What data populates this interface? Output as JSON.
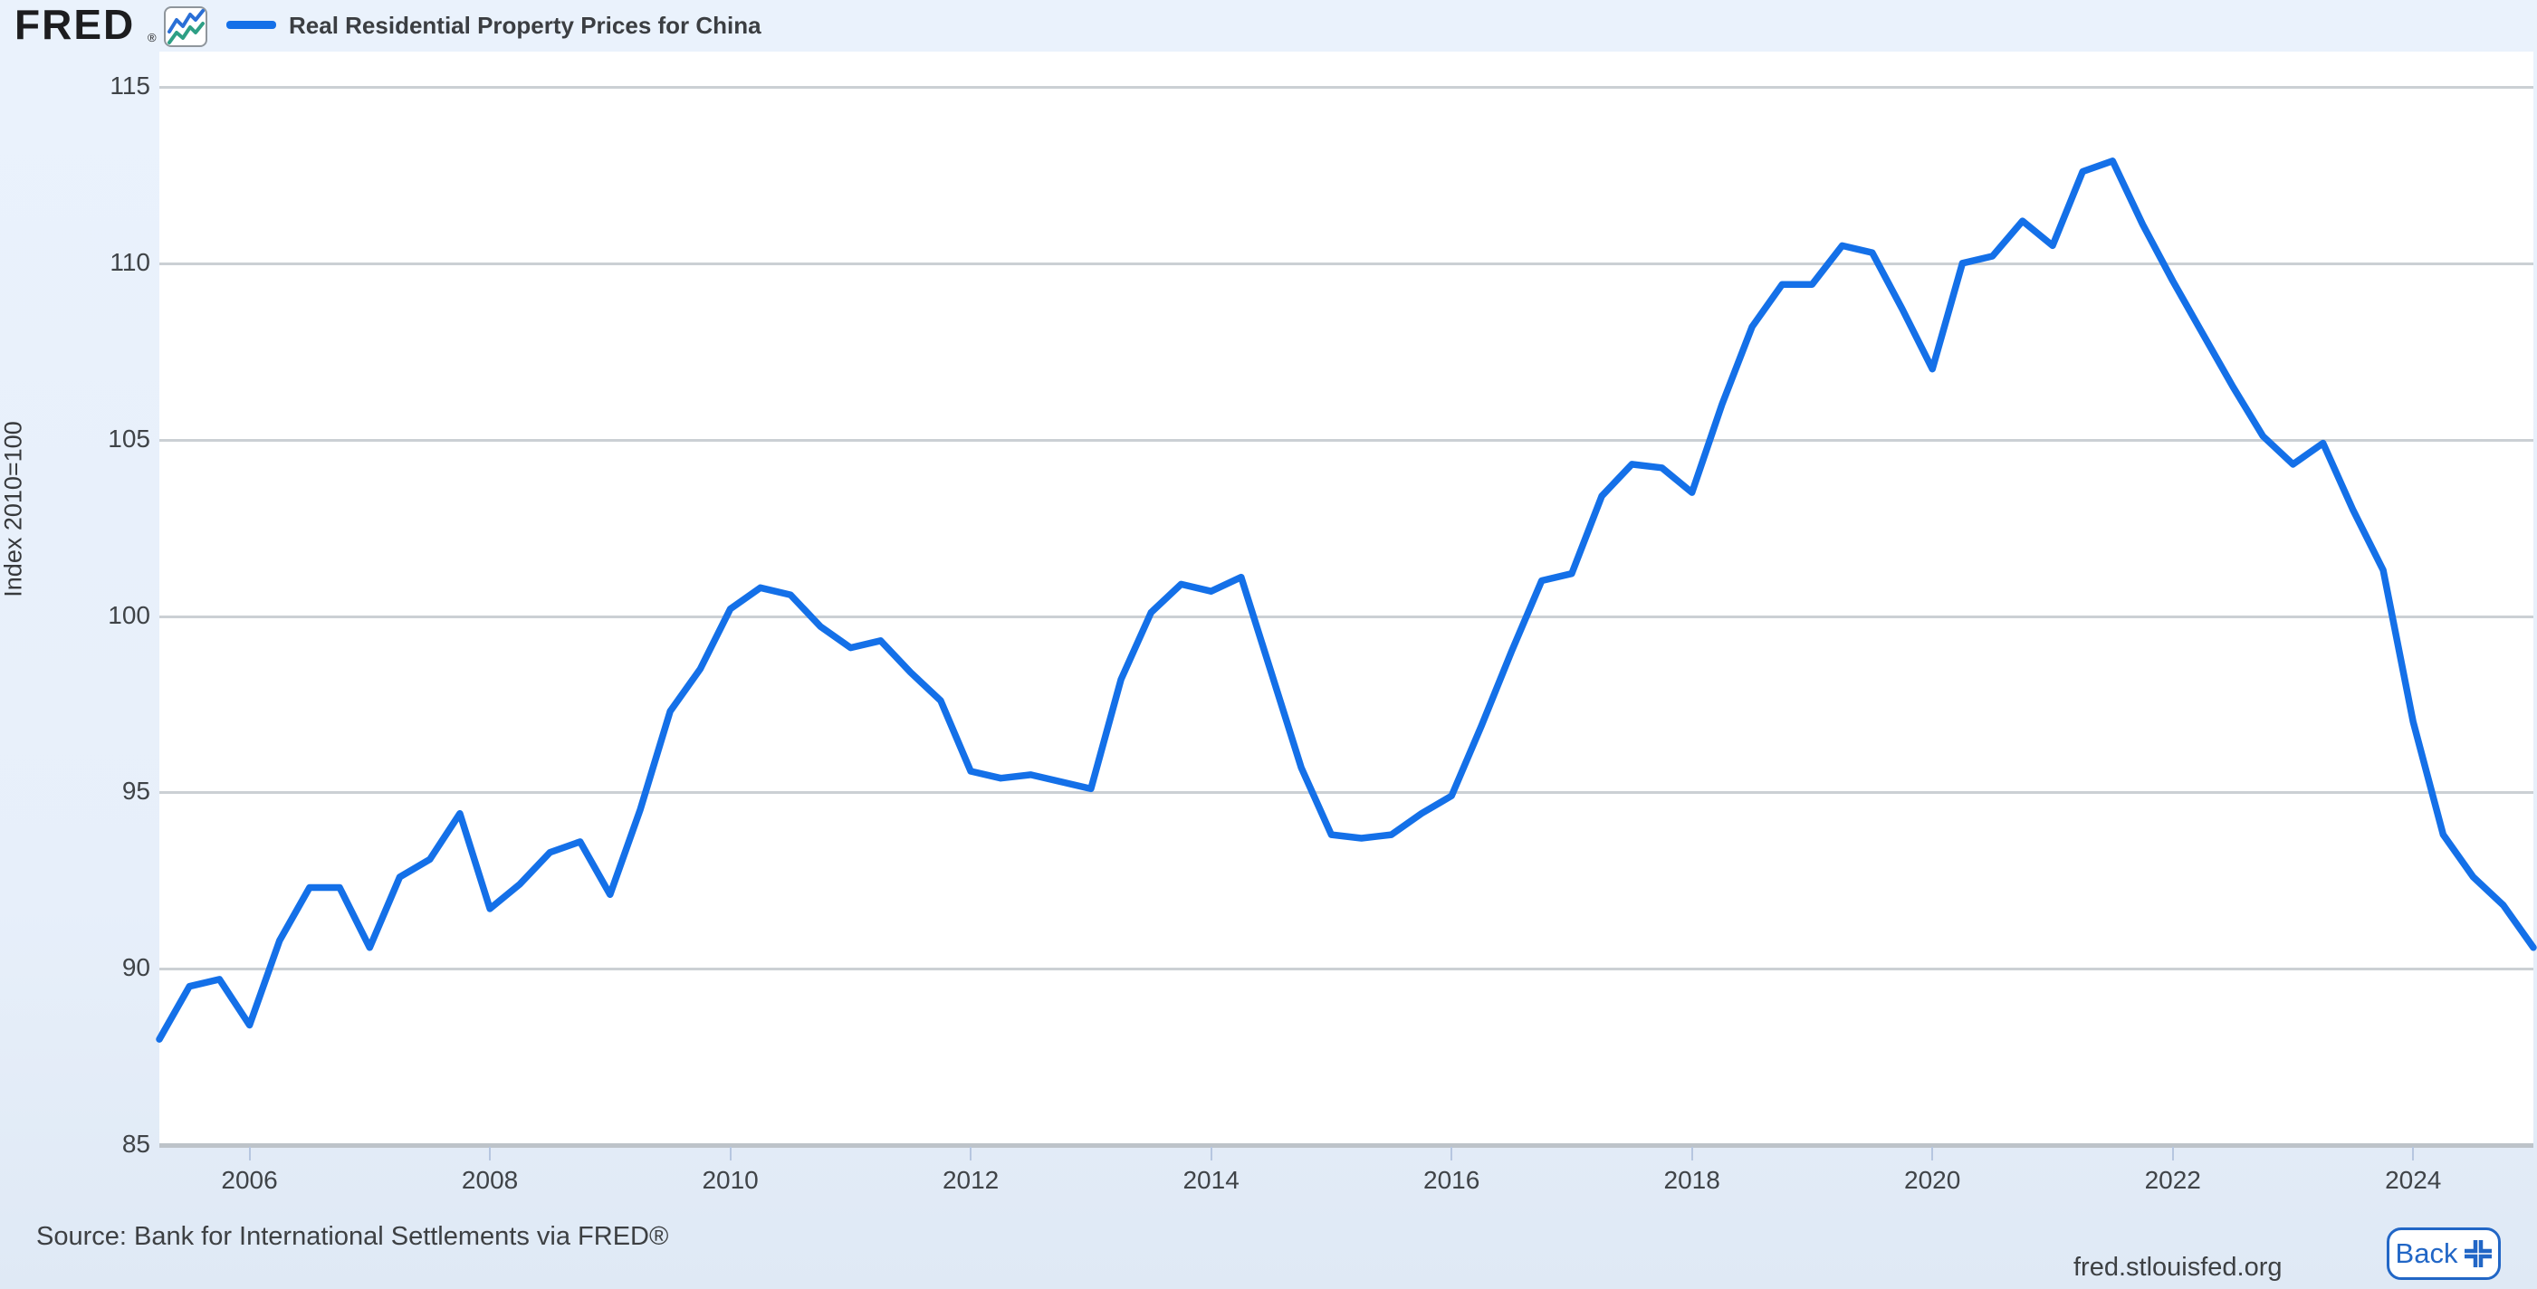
{
  "header": {
    "logo_text": "FRED",
    "logo_registered_mark": "®",
    "legend": {
      "series_label": "Real Residential Property Prices for China",
      "swatch_color": "#1470e8"
    }
  },
  "footer": {
    "source_text": "Source: Bank for International Settlements via FRED®",
    "site_url": "fred.stlouisfed.org",
    "back_button_label": "Back"
  },
  "icons": {
    "fred_logo_chart_icon": "line-chart-icon",
    "back_button_icon": "exit-fullscreen-icon"
  },
  "colors": {
    "page_background": "#e8f0fb",
    "plot_background": "#ffffff",
    "gridline": "#cbd0d4",
    "axis_line": "#bdc3c9",
    "line": "#1470e8",
    "tick_mark": "#b6c6e0",
    "text": "#3f4347",
    "back_button_blue": "#2166c6",
    "logo_icon_blue": "#2a6fd6",
    "logo_icon_teal": "#2e9f85"
  },
  "chart_data": {
    "type": "line",
    "title": "Real Residential Property Prices for China",
    "xlabel": "",
    "ylabel": "Index 2010=100",
    "ylim": [
      85,
      115
    ],
    "yticks": [
      85,
      90,
      95,
      100,
      105,
      110,
      115
    ],
    "xticks": [
      2006,
      2008,
      2010,
      2012,
      2014,
      2016,
      2018,
      2020,
      2022,
      2024
    ],
    "x_start_decimal": 2005.25,
    "x_end_decimal": 2025.0,
    "frequency": "quarterly",
    "grid": "horizontal-only",
    "legend_position": "top-left",
    "series": [
      {
        "name": "Real Residential Property Prices for China",
        "color": "#1470e8",
        "points": [
          [
            "2005 Q2",
            88.0
          ],
          [
            "2005 Q3",
            89.5
          ],
          [
            "2005 Q4",
            89.7
          ],
          [
            "2006 Q1",
            88.4
          ],
          [
            "2006 Q2",
            90.8
          ],
          [
            "2006 Q3",
            92.3
          ],
          [
            "2006 Q4",
            92.3
          ],
          [
            "2007 Q1",
            90.6
          ],
          [
            "2007 Q2",
            92.6
          ],
          [
            "2007 Q3",
            93.1
          ],
          [
            "2007 Q4",
            94.4
          ],
          [
            "2008 Q1",
            91.7
          ],
          [
            "2008 Q2",
            92.4
          ],
          [
            "2008 Q3",
            93.3
          ],
          [
            "2008 Q4",
            93.6
          ],
          [
            "2009 Q1",
            92.1
          ],
          [
            "2009 Q2",
            94.5
          ],
          [
            "2009 Q3",
            97.3
          ],
          [
            "2009 Q4",
            98.5
          ],
          [
            "2010 Q1",
            100.2
          ],
          [
            "2010 Q2",
            100.8
          ],
          [
            "2010 Q3",
            100.6
          ],
          [
            "2010 Q4",
            99.7
          ],
          [
            "2011 Q1",
            99.1
          ],
          [
            "2011 Q2",
            99.3
          ],
          [
            "2011 Q3",
            98.4
          ],
          [
            "2011 Q4",
            97.6
          ],
          [
            "2012 Q1",
            95.6
          ],
          [
            "2012 Q2",
            95.4
          ],
          [
            "2012 Q3",
            95.5
          ],
          [
            "2012 Q4",
            95.3
          ],
          [
            "2013 Q1",
            95.1
          ],
          [
            "2013 Q2",
            98.2
          ],
          [
            "2013 Q3",
            100.1
          ],
          [
            "2013 Q4",
            100.9
          ],
          [
            "2014 Q1",
            100.7
          ],
          [
            "2014 Q2",
            101.1
          ],
          [
            "2014 Q3",
            98.4
          ],
          [
            "2014 Q4",
            95.7
          ],
          [
            "2015 Q1",
            93.8
          ],
          [
            "2015 Q2",
            93.7
          ],
          [
            "2015 Q3",
            93.8
          ],
          [
            "2015 Q4",
            94.4
          ],
          [
            "2016 Q1",
            94.9
          ],
          [
            "2016 Q2",
            96.9
          ],
          [
            "2016 Q3",
            99.0
          ],
          [
            "2016 Q4",
            101.0
          ],
          [
            "2017 Q1",
            101.2
          ],
          [
            "2017 Q2",
            103.4
          ],
          [
            "2017 Q3",
            104.3
          ],
          [
            "2017 Q4",
            104.2
          ],
          [
            "2018 Q1",
            103.5
          ],
          [
            "2018 Q2",
            106.0
          ],
          [
            "2018 Q3",
            108.2
          ],
          [
            "2018 Q4",
            109.4
          ],
          [
            "2019 Q1",
            109.4
          ],
          [
            "2019 Q2",
            110.5
          ],
          [
            "2019 Q3",
            110.3
          ],
          [
            "2019 Q4",
            108.7
          ],
          [
            "2020 Q1",
            107.0
          ],
          [
            "2020 Q2",
            110.0
          ],
          [
            "2020 Q3",
            110.2
          ],
          [
            "2020 Q4",
            111.2
          ],
          [
            "2021 Q1",
            110.5
          ],
          [
            "2021 Q2",
            112.6
          ],
          [
            "2021 Q3",
            112.9
          ],
          [
            "2021 Q4",
            111.1
          ],
          [
            "2022 Q1",
            109.5
          ],
          [
            "2022 Q2",
            108.0
          ],
          [
            "2022 Q3",
            106.5
          ],
          [
            "2022 Q4",
            105.1
          ],
          [
            "2023 Q1",
            104.3
          ],
          [
            "2023 Q2",
            104.9
          ],
          [
            "2023 Q3",
            103.0
          ],
          [
            "2023 Q4",
            101.3
          ],
          [
            "2024 Q1",
            97.0
          ],
          [
            "2024 Q2",
            93.8
          ],
          [
            "2024 Q3",
            92.6
          ],
          [
            "2024 Q4",
            91.8
          ],
          [
            "2025 Q1",
            90.6
          ]
        ]
      }
    ]
  }
}
